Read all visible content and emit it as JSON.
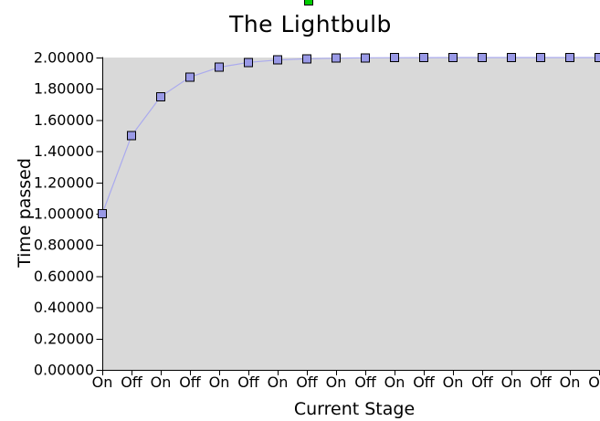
{
  "chart_data": {
    "type": "line",
    "title": "The Lightbulb",
    "xlabel": "Current Stage",
    "ylabel": "Time passed",
    "categories": [
      "On",
      "Off",
      "On",
      "Off",
      "On",
      "Off",
      "On",
      "Off",
      "On",
      "Off",
      "On",
      "Off",
      "On",
      "Off",
      "On",
      "Off",
      "On",
      "Off"
    ],
    "values": [
      1,
      1.5,
      1.75,
      1.875,
      1.9375,
      1.96875,
      1.984375,
      1.9921875,
      1.99609375,
      1.99804688,
      1.99902344,
      1.99951172,
      1.99975586,
      1.99987793,
      1.99993896,
      1.99996948,
      1.99998474,
      1.99999237
    ],
    "y_tick_labels": [
      "0.00000",
      "0.20000",
      "0.40000",
      "0.60000",
      "0.80000",
      "1.00000",
      "1.20000",
      "1.40000",
      "1.60000",
      "1.80000",
      "2.00000"
    ],
    "ylim": [
      0,
      2
    ],
    "grid": false,
    "legend_position": "top-center-clipped",
    "marker_shape": "square"
  },
  "colors": {
    "background": "#ffffff",
    "plot_background": "#d9d9d9",
    "line": "#aaaaee",
    "marker_fill": "#9999e6",
    "marker_border": "#000000",
    "axis": "#000000",
    "text": "#000000",
    "legend_icon": "#00cc00"
  }
}
